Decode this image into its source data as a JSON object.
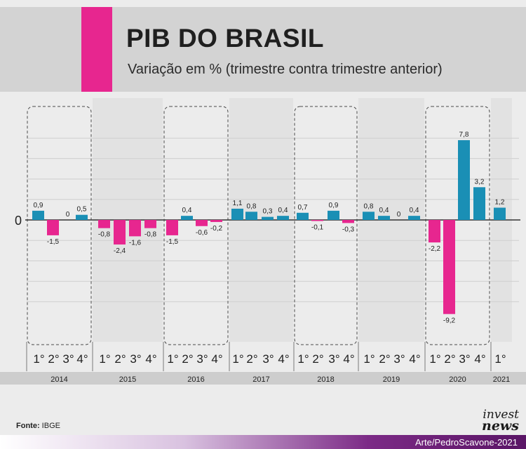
{
  "header": {
    "title": "PIB DO BRASIL",
    "subtitle": "Variação em % (trimestre contra trimestre anterior)"
  },
  "footer": {
    "source_label": "Fonte:",
    "source_value": "IBGE",
    "credit": "Arte/PedroScavone-2021",
    "logo_line1": "invest",
    "logo_line2": "news"
  },
  "colors": {
    "positive": "#1a8fb5",
    "negative": "#e7268f",
    "accent": "#e7268f"
  },
  "chart_data": {
    "type": "bar",
    "title": "PIB DO BRASIL",
    "subtitle": "Variação em % (trimestre contra trimestre anterior)",
    "xlabel": "",
    "ylabel": "",
    "ylim": [
      -10,
      8.5
    ],
    "zero_label": "0",
    "grid": true,
    "highlighted_years": [
      "2014",
      "2016",
      "2018",
      "2020"
    ],
    "years": [
      {
        "year": "2014",
        "quarters": [
          "1°",
          "2°",
          "3°",
          "4°"
        ],
        "values": [
          0.9,
          -1.5,
          0,
          0.5
        ],
        "labels": [
          "0,9",
          "-1,5",
          "0",
          "0,5"
        ]
      },
      {
        "year": "2015",
        "quarters": [
          "1°",
          "2°",
          "3°",
          "4°"
        ],
        "values": [
          -0.8,
          -2.4,
          -1.6,
          -0.8
        ],
        "labels": [
          "-0,8",
          "-2,4",
          "-1,6",
          "-0,8"
        ]
      },
      {
        "year": "2016",
        "quarters": [
          "1°",
          "2°",
          "3°",
          "4°"
        ],
        "values": [
          -1.5,
          0.4,
          -0.6,
          -0.2
        ],
        "labels": [
          "-1,5",
          "0,4",
          "-0,6",
          "-0,2"
        ]
      },
      {
        "year": "2017",
        "quarters": [
          "1°",
          "2°",
          "3°",
          "4°"
        ],
        "values": [
          1.1,
          0.8,
          0.3,
          0.4
        ],
        "labels": [
          "1,1",
          "0,8",
          "0,3",
          "0,4"
        ]
      },
      {
        "year": "2018",
        "quarters": [
          "1°",
          "2°",
          "3°",
          "4°"
        ],
        "values": [
          0.7,
          -0.1,
          0.9,
          -0.3
        ],
        "labels": [
          "0,7",
          "-0,1",
          "0,9",
          "-0,3"
        ]
      },
      {
        "year": "2019",
        "quarters": [
          "1°",
          "2°",
          "3°",
          "4°"
        ],
        "values": [
          0.8,
          0.4,
          0,
          0.4
        ],
        "labels": [
          "0,8",
          "0,4",
          "0",
          "0,4"
        ]
      },
      {
        "year": "2020",
        "quarters": [
          "1°",
          "2°",
          "3°",
          "4°"
        ],
        "values": [
          -2.2,
          -9.2,
          7.8,
          3.2
        ],
        "labels": [
          "-2,2",
          "-9,2",
          "7,8",
          "3,2"
        ]
      },
      {
        "year": "2021",
        "quarters": [
          "1°"
        ],
        "values": [
          1.2
        ],
        "labels": [
          "1,2"
        ]
      }
    ]
  }
}
